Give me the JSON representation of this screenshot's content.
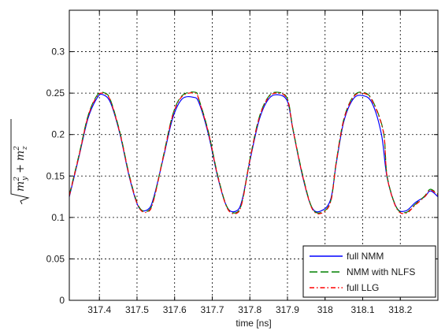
{
  "chart_data": {
    "type": "line",
    "xlabel": "time [ns]",
    "ylabel": {
      "full": "√(m_y² + m_z²)",
      "sqrt": "√",
      "m1": "m",
      "sub1": "y",
      "sup1": "2",
      "plus": "+",
      "m2": "m",
      "sub2": "z",
      "sup2": "2"
    },
    "xlim": [
      317.32,
      318.3
    ],
    "ylim": [
      0,
      0.35
    ],
    "xticks": [
      317.4,
      317.5,
      317.6,
      317.7,
      317.8,
      317.9,
      318.0,
      318.1,
      318.2
    ],
    "xtick_labels": [
      "317.4",
      "317.5",
      "317.6",
      "317.7",
      "317.8",
      "317.9",
      "318",
      "318.1",
      "318.2"
    ],
    "yticks": [
      0,
      0.05,
      0.1,
      0.15,
      0.2,
      0.25,
      0.3
    ],
    "ytick_labels": [
      "0",
      "0.05",
      "0.1",
      "0.15",
      "0.2",
      "0.25",
      "0.3"
    ],
    "grid": true,
    "legend_position": "bottom-right",
    "series": [
      {
        "name": "full NMM",
        "color": "#0000ff",
        "dash": "solid",
        "x": [
          317.32,
          317.345,
          317.37,
          317.395,
          317.41,
          317.43,
          317.455,
          317.48,
          317.505,
          317.53,
          317.545,
          317.57,
          317.595,
          317.62,
          317.65,
          317.665,
          317.69,
          317.715,
          317.74,
          317.765,
          317.78,
          317.8,
          317.825,
          317.85,
          317.875,
          317.9,
          317.915,
          317.94,
          317.965,
          317.99,
          318.015,
          318.03,
          318.05,
          318.075,
          318.1,
          318.125,
          318.15,
          318.165,
          318.19,
          318.215,
          318.24,
          318.265,
          318.28,
          318.3
        ],
        "y": [
          0.125,
          0.172,
          0.22,
          0.245,
          0.248,
          0.238,
          0.2,
          0.148,
          0.112,
          0.11,
          0.125,
          0.172,
          0.22,
          0.243,
          0.245,
          0.238,
          0.2,
          0.148,
          0.112,
          0.108,
          0.122,
          0.168,
          0.218,
          0.243,
          0.248,
          0.24,
          0.205,
          0.15,
          0.112,
          0.108,
          0.122,
          0.166,
          0.216,
          0.243,
          0.247,
          0.238,
          0.2,
          0.148,
          0.112,
          0.108,
          0.118,
          0.125,
          0.132,
          0.125
        ]
      },
      {
        "name": "NMM with NLFS",
        "color": "#008000",
        "dash": "long-dash",
        "x": [
          317.32,
          317.345,
          317.37,
          317.395,
          317.415,
          317.43,
          317.455,
          317.48,
          317.505,
          317.53,
          317.545,
          317.57,
          317.595,
          317.62,
          317.655,
          317.665,
          317.69,
          317.715,
          317.74,
          317.765,
          317.78,
          317.8,
          317.825,
          317.85,
          317.875,
          317.9,
          317.915,
          317.94,
          317.965,
          317.99,
          318.015,
          318.03,
          318.05,
          318.075,
          318.1,
          318.125,
          318.155,
          318.165,
          318.19,
          318.215,
          318.24,
          318.265,
          318.28,
          318.3
        ],
        "y": [
          0.127,
          0.174,
          0.223,
          0.248,
          0.25,
          0.241,
          0.202,
          0.15,
          0.113,
          0.108,
          0.123,
          0.174,
          0.224,
          0.247,
          0.251,
          0.242,
          0.203,
          0.15,
          0.112,
          0.106,
          0.12,
          0.17,
          0.221,
          0.246,
          0.251,
          0.243,
          0.206,
          0.152,
          0.112,
          0.106,
          0.12,
          0.168,
          0.219,
          0.246,
          0.251,
          0.242,
          0.204,
          0.15,
          0.112,
          0.106,
          0.116,
          0.126,
          0.134,
          0.128
        ]
      },
      {
        "name": "full LLG",
        "color": "#ff0000",
        "dash": "dash-dot",
        "x": [
          317.32,
          317.345,
          317.37,
          317.395,
          317.415,
          317.43,
          317.455,
          317.48,
          317.505,
          317.53,
          317.545,
          317.57,
          317.595,
          317.62,
          317.655,
          317.665,
          317.69,
          317.715,
          317.74,
          317.765,
          317.78,
          317.8,
          317.825,
          317.85,
          317.875,
          317.9,
          317.915,
          317.94,
          317.965,
          317.99,
          318.015,
          318.03,
          318.05,
          318.075,
          318.1,
          318.125,
          318.155,
          318.165,
          318.19,
          318.215,
          318.24,
          318.265,
          318.28,
          318.3
        ],
        "y": [
          0.126,
          0.173,
          0.222,
          0.247,
          0.249,
          0.24,
          0.201,
          0.149,
          0.112,
          0.107,
          0.122,
          0.173,
          0.223,
          0.246,
          0.25,
          0.241,
          0.202,
          0.149,
          0.111,
          0.105,
          0.119,
          0.169,
          0.22,
          0.245,
          0.25,
          0.242,
          0.205,
          0.151,
          0.111,
          0.105,
          0.119,
          0.167,
          0.218,
          0.245,
          0.25,
          0.241,
          0.203,
          0.149,
          0.111,
          0.105,
          0.115,
          0.125,
          0.133,
          0.127
        ]
      }
    ]
  }
}
